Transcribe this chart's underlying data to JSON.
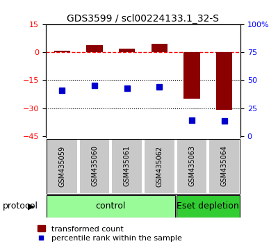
{
  "title": "GDS3599 / scl00224133.1_32-S",
  "samples": [
    "GSM435059",
    "GSM435060",
    "GSM435061",
    "GSM435062",
    "GSM435063",
    "GSM435064"
  ],
  "red_bars": [
    0.8,
    4.0,
    2.0,
    4.5,
    -25.0,
    -31.0
  ],
  "blue_squares": [
    -20.5,
    -18.0,
    -19.5,
    -18.5,
    -36.5,
    -37.0
  ],
  "left_ylim": [
    -46,
    15
  ],
  "left_yticks": [
    15,
    0,
    -15,
    -30,
    -45
  ],
  "hline_zero": 0,
  "hline_minus15": -15,
  "hline_minus30": -30,
  "bar_color": "#8B0000",
  "square_color": "#0000CD",
  "control_color": "#98FB98",
  "depletion_color": "#32CD32",
  "label_area_color": "#C8C8C8",
  "protocol_label": "protocol",
  "control_label": "control",
  "depletion_label": "Eset depletion",
  "legend_red_label": "transformed count",
  "legend_blue_label": "percentile rank within the sample",
  "n_control": 4,
  "n_depletion": 2,
  "right_tick_positions": [
    15,
    0,
    -15,
    -30,
    -45
  ],
  "right_tick_labels": [
    "100%",
    "75",
    "50",
    "25",
    "0"
  ]
}
